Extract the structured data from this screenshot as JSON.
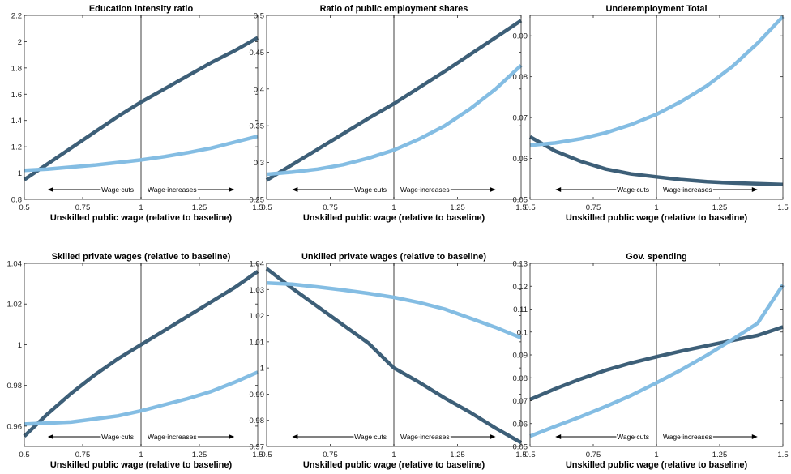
{
  "colors": {
    "dark": "#3d5f78",
    "light": "#84bde3",
    "divider": "#888888",
    "axis": "#262626"
  },
  "chart_data": [
    {
      "type": "line",
      "title": "Education intensity ratio",
      "xlabel": "Unskilled public wage (relative to baseline)",
      "xlim": [
        0.5,
        1.5
      ],
      "ylim": [
        0.8,
        2.2
      ],
      "xticks": [
        "0.5",
        "0.75",
        "1",
        "1.25",
        "1.5"
      ],
      "yticks": [
        "0.8",
        "1",
        "1.2",
        "1.4",
        "1.6",
        "1.8",
        "2",
        "2.2"
      ],
      "vline": 1,
      "annotations": [
        "Wage cuts",
        "Wage increases"
      ],
      "x": [
        0.5,
        0.6,
        0.7,
        0.8,
        0.9,
        1.0,
        1.1,
        1.2,
        1.3,
        1.4,
        1.5
      ],
      "series": [
        {
          "color": "dark",
          "values": [
            0.95,
            1.07,
            1.19,
            1.31,
            1.43,
            1.54,
            1.64,
            1.74,
            1.84,
            1.93,
            2.03
          ]
        },
        {
          "color": "light",
          "values": [
            1.02,
            1.03,
            1.045,
            1.06,
            1.08,
            1.1,
            1.125,
            1.155,
            1.19,
            1.235,
            1.28
          ]
        }
      ]
    },
    {
      "type": "line",
      "title": "Ratio of public employment shares",
      "xlabel": "Unskilled public wage (relative to baseline)",
      "xlim": [
        0.5,
        1.5
      ],
      "ylim": [
        0.25,
        0.5
      ],
      "xticks": [
        "0.5",
        "0.75",
        "1",
        "1.25",
        "1.5"
      ],
      "yticks": [
        "0.25",
        "0.3",
        "0.35",
        "0.4",
        "0.45",
        "0.5"
      ],
      "vline": 1,
      "annotations": [
        "Wage cuts",
        "Wage increases"
      ],
      "x": [
        0.5,
        0.6,
        0.7,
        0.8,
        0.9,
        1.0,
        1.1,
        1.2,
        1.3,
        1.4,
        1.5
      ],
      "series": [
        {
          "color": "dark",
          "values": [
            0.276,
            0.297,
            0.318,
            0.339,
            0.36,
            0.38,
            0.402,
            0.424,
            0.447,
            0.47,
            0.493
          ]
        },
        {
          "color": "light",
          "values": [
            0.284,
            0.287,
            0.291,
            0.297,
            0.306,
            0.317,
            0.332,
            0.35,
            0.373,
            0.4,
            0.432
          ]
        }
      ]
    },
    {
      "type": "line",
      "title": "Underemployment Total",
      "xlabel": "Unskilled public wage (relative to baseline)",
      "xlim": [
        0.5,
        1.5
      ],
      "ylim": [
        0.05,
        0.095
      ],
      "xticks": [
        "0.5",
        "0.75",
        "1",
        "1.25",
        "1.5"
      ],
      "yticks": [
        "0.05",
        "0.06",
        "0.07",
        "0.08",
        "0.09"
      ],
      "vline": 1,
      "annotations": [
        "Wage cuts",
        "Wage increases"
      ],
      "x": [
        0.5,
        0.6,
        0.7,
        0.8,
        0.9,
        1.0,
        1.1,
        1.2,
        1.3,
        1.4,
        1.5
      ],
      "series": [
        {
          "color": "dark",
          "values": [
            0.0653,
            0.0618,
            0.0593,
            0.0574,
            0.0562,
            0.0555,
            0.0548,
            0.0543,
            0.054,
            0.0538,
            0.0536
          ]
        },
        {
          "color": "light",
          "values": [
            0.0632,
            0.0638,
            0.0648,
            0.0663,
            0.0683,
            0.0708,
            0.074,
            0.0778,
            0.0825,
            0.0882,
            0.0947
          ]
        }
      ]
    },
    {
      "type": "line",
      "title": "Skilled private wages (relative to baseline)",
      "xlabel": "Unskilled public wage (relative to baseline)",
      "xlim": [
        0.5,
        1.5
      ],
      "ylim": [
        0.95,
        1.04
      ],
      "xticks": [
        "0.5",
        "0.75",
        "1",
        "1.25",
        "1.5"
      ],
      "yticks": [
        "0.96",
        "0.98",
        "1",
        "1.02",
        "1.04"
      ],
      "vline": 1,
      "annotations": [
        "Wage cuts",
        "Wage increases"
      ],
      "x": [
        0.5,
        0.6,
        0.7,
        0.8,
        0.9,
        1.0,
        1.1,
        1.2,
        1.3,
        1.4,
        1.5
      ],
      "series": [
        {
          "color": "dark",
          "values": [
            0.955,
            0.966,
            0.976,
            0.985,
            0.993,
            1.0,
            1.007,
            1.014,
            1.021,
            1.028,
            1.036
          ]
        },
        {
          "color": "light",
          "values": [
            0.961,
            0.9615,
            0.962,
            0.9635,
            0.965,
            0.9675,
            0.9705,
            0.9735,
            0.977,
            0.9815,
            0.9865
          ]
        }
      ]
    },
    {
      "type": "line",
      "title": "Unkilled private wages (relative to baseline)",
      "xlabel": "Unskilled public wage (relative to baseline)",
      "xlim": [
        0.5,
        1.5
      ],
      "ylim": [
        0.97,
        1.04
      ],
      "xticks": [
        "0.5",
        "0.75",
        "1",
        "1.25",
        "1.5"
      ],
      "yticks": [
        "0.97",
        "0.98",
        "0.99",
        "1",
        "1.01",
        "1.02",
        "1.03",
        "1.04"
      ],
      "vline": 1,
      "annotations": [
        "Wage cuts",
        "Wage increases"
      ],
      "x": [
        0.5,
        0.6,
        0.7,
        0.8,
        0.9,
        1.0,
        1.1,
        1.2,
        1.3,
        1.4,
        1.5
      ],
      "series": [
        {
          "color": "dark",
          "values": [
            1.038,
            1.0305,
            1.0235,
            1.0165,
            1.0095,
            1.0,
            0.9945,
            0.9885,
            0.983,
            0.977,
            0.9715
          ]
        },
        {
          "color": "light",
          "values": [
            1.0325,
            1.032,
            1.031,
            1.0298,
            1.0285,
            1.027,
            1.025,
            1.0225,
            1.019,
            1.0155,
            1.0115
          ]
        }
      ]
    },
    {
      "type": "line",
      "title": "Gov. spending",
      "xlabel": "Unskilled public wage (relative to baseline)",
      "xlim": [
        0.5,
        1.5
      ],
      "ylim": [
        0.05,
        0.13
      ],
      "xticks": [
        "0.5",
        "0.75",
        "1",
        "1.25",
        "1.5"
      ],
      "yticks": [
        "0.05",
        "0.06",
        "0.07",
        "0.08",
        "0.09",
        "0.1",
        "0.11",
        "0.12",
        "0.13"
      ],
      "vline": 1,
      "annotations": [
        "Wage cuts",
        "Wage increases"
      ],
      "x": [
        0.5,
        0.6,
        0.7,
        0.8,
        0.9,
        1.0,
        1.1,
        1.2,
        1.3,
        1.4,
        1.5
      ],
      "series": [
        {
          "color": "dark",
          "values": [
            0.0705,
            0.0752,
            0.0795,
            0.0833,
            0.0865,
            0.0892,
            0.0917,
            0.094,
            0.0963,
            0.0985,
            0.1022
          ]
        },
        {
          "color": "light",
          "values": [
            0.0545,
            0.0588,
            0.063,
            0.0675,
            0.0723,
            0.0778,
            0.0836,
            0.0899,
            0.0967,
            0.1038,
            0.1205
          ]
        }
      ]
    }
  ]
}
